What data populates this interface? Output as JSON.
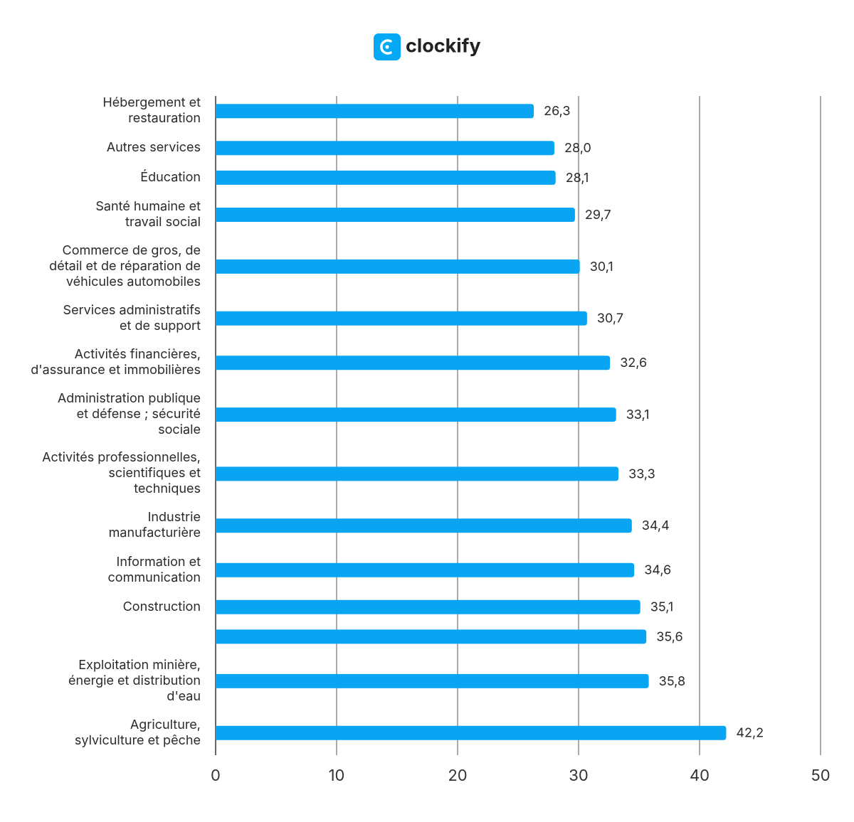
{
  "chart_data": {
    "type": "barh",
    "title": "clockify",
    "categories": [
      "Hébergement et\nrestauration",
      "Autres services",
      "Éducation",
      "Santé humaine et\ntravail social",
      "Commerce de gros, de\ndétail et de réparation de\nvéhicules automobiles",
      "Services administratifs\net de support",
      "Activités financières,\nd'assurance et immobilières",
      "Administration publique\net défense ; sécurité\nsociale",
      "Activités professionnelles,\nscientifiques et\ntechniques",
      "Industrie\nmanufacturière",
      "Information et\ncommunication",
      "Construction",
      null,
      "Exploitation minière,\nénergie et distribution\nd'eau",
      "Agriculture,\nsylviculture et pêche"
    ],
    "values": [
      26.3,
      28.0,
      28.1,
      29.7,
      30.1,
      30.7,
      32.6,
      33.1,
      33.3,
      34.4,
      34.6,
      35.1,
      35.6,
      35.8,
      42.2
    ],
    "value_labels": [
      "26,3",
      "28,0",
      "28,1",
      "29,7",
      "30,1",
      "30,7",
      "32,6",
      "33,1",
      "33,3",
      "34,4",
      "34,6",
      "35,1",
      "35,6",
      "35,8",
      "42,2"
    ],
    "color": "#0aa5f2",
    "xlim": [
      0,
      50
    ],
    "xticks": [
      0,
      10,
      20,
      30,
      40,
      50
    ],
    "grid": true
  }
}
